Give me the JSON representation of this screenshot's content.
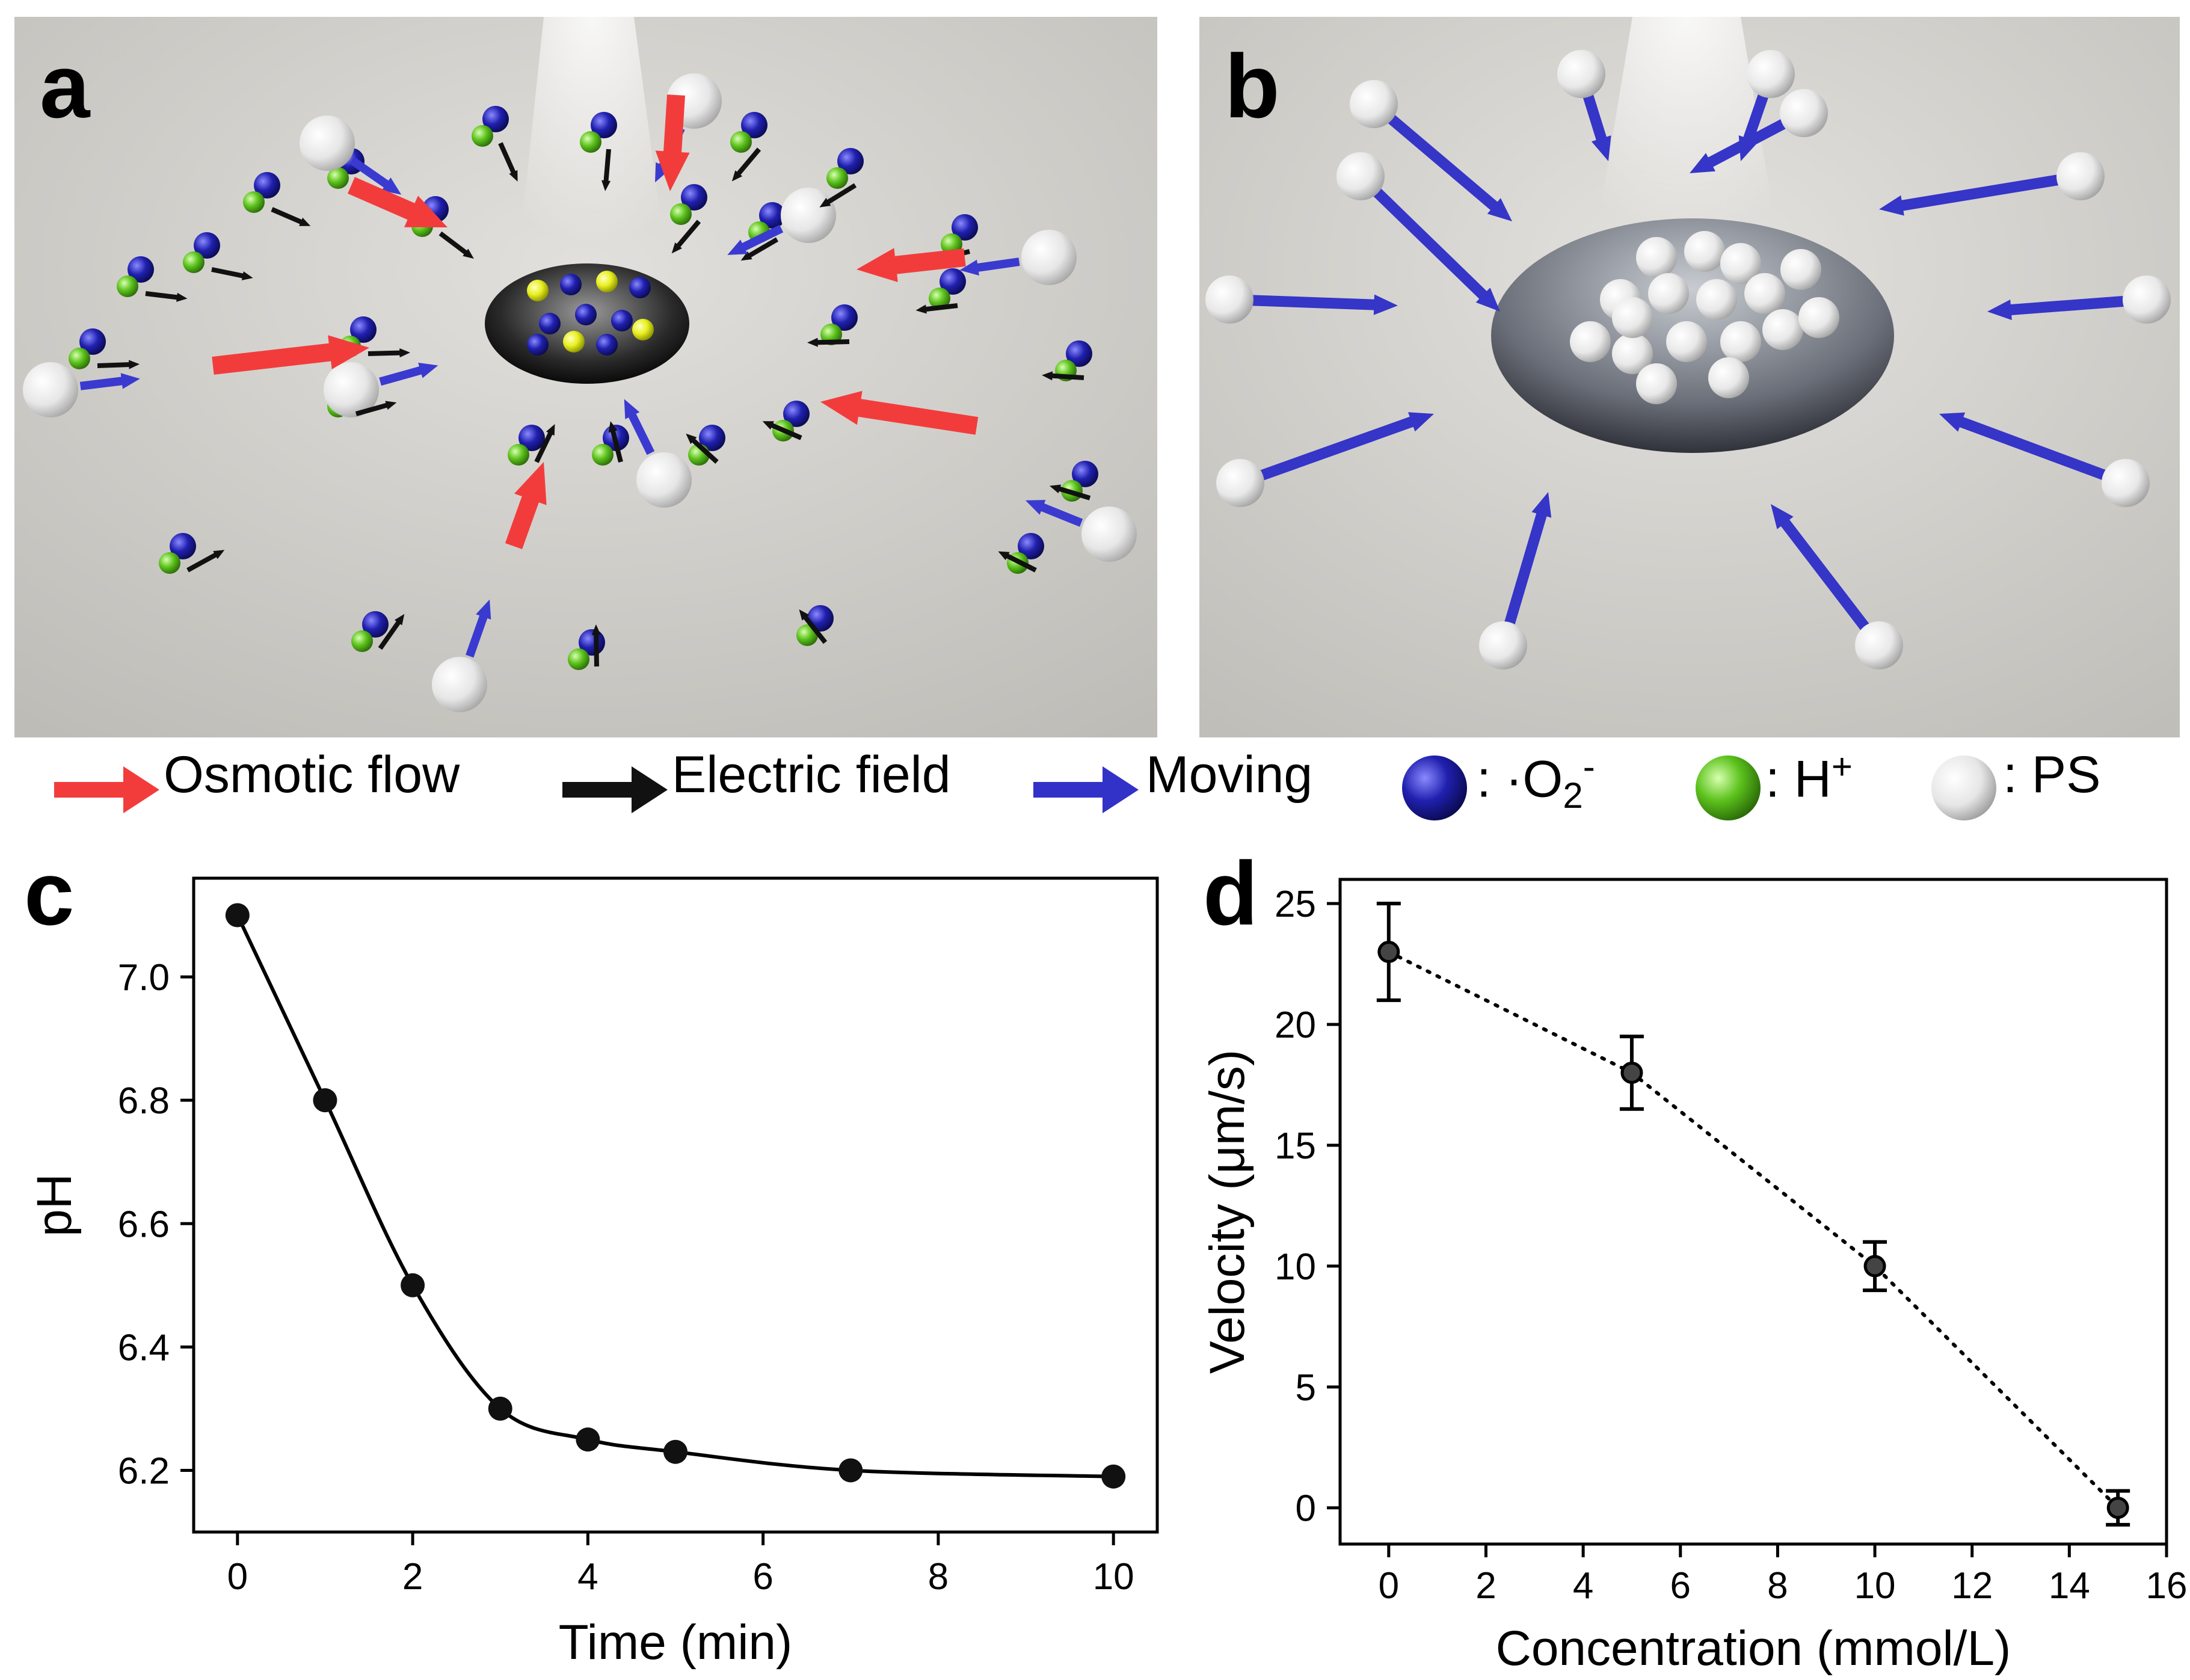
{
  "panels": {
    "a": {
      "letter": "a"
    },
    "b": {
      "letter": "b"
    },
    "c": {
      "letter": "c"
    },
    "d": {
      "letter": "d"
    }
  },
  "legend": {
    "osmotic_flow": "Osmotic flow",
    "electric_field": "Electric field",
    "moving": "Moving",
    "superoxide_sep": ": ",
    "superoxide_dot": "·O",
    "superoxide_sub": "2",
    "superoxide_sup": "-",
    "proton_label": ": H",
    "proton_sup": "+",
    "ps_label": ": PS",
    "colors": {
      "osmotic": "#f23c3c",
      "electric": "#111111",
      "moving": "#3232c8",
      "superoxide": "#1a1aa0",
      "proton": "#58c21a",
      "ps": "#f0f0f0"
    }
  },
  "chart_data": [
    {
      "panel": "c",
      "type": "line",
      "xlabel": "Time  (min)",
      "ylabel": "pH",
      "xlim": [
        -0.5,
        10.5
      ],
      "ylim": [
        6.1,
        7.16
      ],
      "xticks": [
        0,
        2,
        4,
        6,
        8,
        10
      ],
      "yticks": [
        6.2,
        6.4,
        6.6,
        6.8,
        7.0
      ],
      "ytick_labels": [
        "6.2",
        "6.4",
        "6.6",
        "6.8",
        "7.0"
      ],
      "series": [
        {
          "x": [
            0,
            1,
            2,
            3,
            4,
            5,
            7,
            10
          ],
          "y": [
            7.1,
            6.8,
            6.5,
            6.3,
            6.25,
            6.23,
            6.2,
            6.19
          ],
          "line": "solid",
          "color": "#000000"
        }
      ],
      "grid": false,
      "legend": "none"
    },
    {
      "panel": "d",
      "type": "scatter",
      "xlabel": "Concentration (mmol/L)",
      "ylabel": "Velocity (μm/s)",
      "xlim": [
        -1,
        16
      ],
      "ylim": [
        -1.5,
        26
      ],
      "xticks": [
        0,
        2,
        4,
        6,
        8,
        10,
        12,
        14,
        16
      ],
      "yticks": [
        0,
        5,
        10,
        15,
        20,
        25
      ],
      "series": [
        {
          "x": [
            0,
            5,
            10,
            15
          ],
          "y": [
            23,
            18,
            10,
            0
          ],
          "err": [
            2.0,
            1.5,
            1.0,
            0.7
          ],
          "line": "dotted",
          "color": "#000000"
        }
      ],
      "grid": false,
      "legend": "none"
    }
  ]
}
